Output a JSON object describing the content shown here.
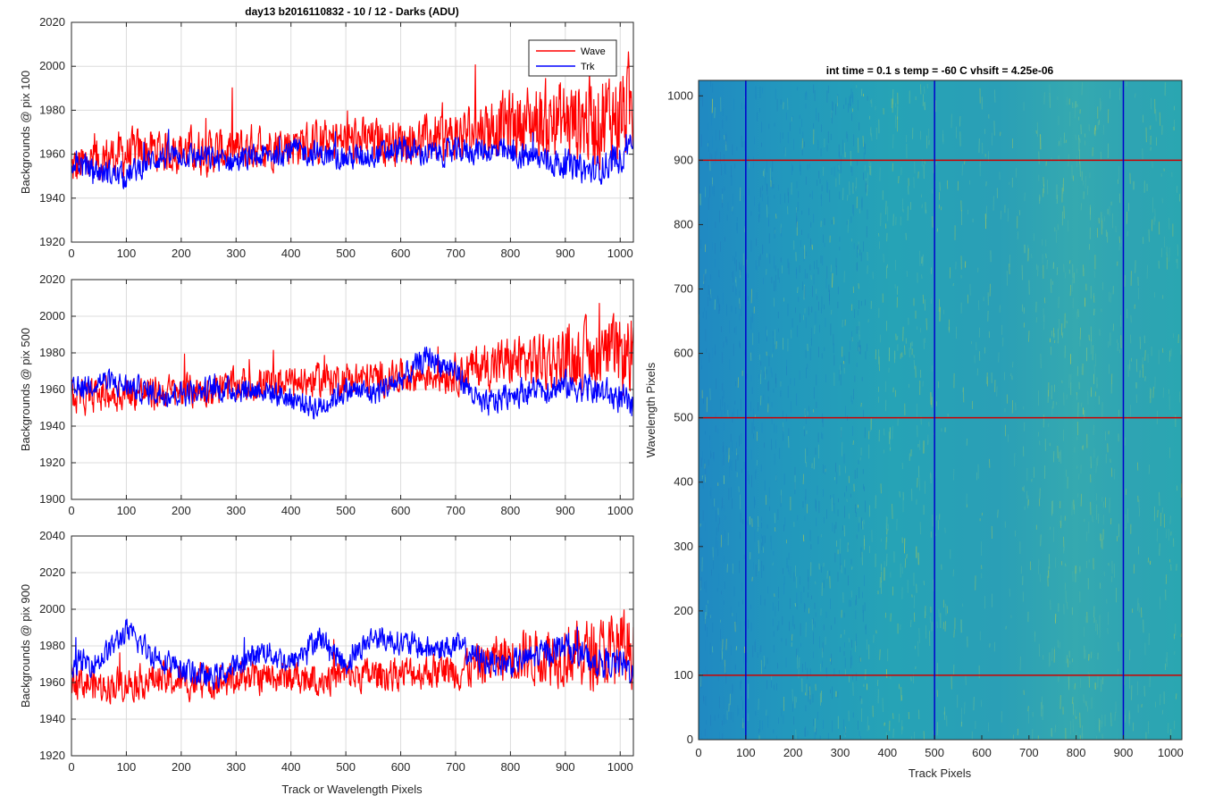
{
  "figure": {
    "main_title": "day13 b2016110832 - 10 / 12 - Darks (ADU)",
    "xlabel_left": "Track or Wavelength Pixels"
  },
  "chart_data": [
    {
      "type": "line",
      "ylabel": "Backgrounds @ pix 100",
      "xlim": [
        0,
        1024
      ],
      "ylim": [
        1920,
        2020
      ],
      "xticks": [
        0,
        100,
        200,
        300,
        400,
        500,
        600,
        700,
        800,
        900,
        1000
      ],
      "yticks": [
        1920,
        1940,
        1960,
        1980,
        2000,
        2020
      ],
      "grid": true,
      "legend": {
        "placement": "top-right",
        "entries": [
          "Wave",
          "Trk"
        ]
      },
      "series": [
        {
          "name": "Wave",
          "color": "#ff0000",
          "x": [
            0,
            50,
            100,
            150,
            200,
            250,
            300,
            350,
            400,
            450,
            500,
            550,
            600,
            650,
            700,
            750,
            800,
            850,
            900,
            950,
            1000,
            1024
          ],
          "y": [
            1953,
            1958,
            1960,
            1962,
            1962,
            1961,
            1962,
            1964,
            1965,
            1965,
            1966,
            1966,
            1966,
            1967,
            1968,
            1972,
            1974,
            1975,
            1975,
            1976,
            1978,
            1982
          ]
        },
        {
          "name": "Trk",
          "color": "#0000ff",
          "x": [
            0,
            50,
            100,
            150,
            200,
            250,
            300,
            350,
            400,
            450,
            500,
            550,
            600,
            650,
            700,
            750,
            800,
            850,
            900,
            950,
            1000,
            1024
          ],
          "y": [
            1957,
            1952,
            1950,
            1958,
            1960,
            1958,
            1957,
            1959,
            1962,
            1960,
            1958,
            1960,
            1962,
            1960,
            1961,
            1962,
            1960,
            1958,
            1955,
            1952,
            1958,
            1970
          ]
        }
      ]
    },
    {
      "type": "line",
      "ylabel": "Backgrounds @ pix 500",
      "xlim": [
        0,
        1024
      ],
      "ylim": [
        1900,
        2020
      ],
      "xticks": [
        0,
        100,
        200,
        300,
        400,
        500,
        600,
        700,
        800,
        900,
        1000
      ],
      "yticks": [
        1900,
        1920,
        1940,
        1960,
        1980,
        2000,
        2020
      ],
      "grid": true,
      "series": [
        {
          "name": "Wave",
          "color": "#ff0000",
          "x": [
            0,
            50,
            100,
            150,
            200,
            250,
            300,
            350,
            400,
            450,
            500,
            550,
            600,
            650,
            700,
            750,
            800,
            850,
            900,
            950,
            1000,
            1024
          ],
          "y": [
            1955,
            1957,
            1958,
            1958,
            1959,
            1960,
            1962,
            1963,
            1964,
            1965,
            1966,
            1966,
            1967,
            1968,
            1969,
            1973,
            1975,
            1976,
            1977,
            1978,
            1978,
            1980
          ]
        },
        {
          "name": "Trk",
          "color": "#0000ff",
          "x": [
            0,
            50,
            100,
            150,
            200,
            250,
            300,
            350,
            400,
            450,
            500,
            550,
            600,
            650,
            700,
            750,
            800,
            850,
            900,
            950,
            1000,
            1024
          ],
          "y": [
            1958,
            1965,
            1962,
            1958,
            1958,
            1960,
            1960,
            1960,
            1955,
            1950,
            1960,
            1958,
            1965,
            1978,
            1970,
            1950,
            1958,
            1960,
            1962,
            1960,
            1955,
            1950
          ]
        }
      ]
    },
    {
      "type": "line",
      "ylabel": "Backgrounds @ pix 900",
      "xlim": [
        0,
        1024
      ],
      "ylim": [
        1920,
        2040
      ],
      "xticks": [
        0,
        100,
        200,
        300,
        400,
        500,
        600,
        700,
        800,
        900,
        1000
      ],
      "yticks": [
        1920,
        1940,
        1960,
        1980,
        2000,
        2020,
        2040
      ],
      "grid": true,
      "series": [
        {
          "name": "Wave",
          "color": "#ff0000",
          "x": [
            0,
            50,
            100,
            150,
            200,
            250,
            300,
            350,
            400,
            450,
            500,
            550,
            600,
            650,
            700,
            750,
            800,
            850,
            900,
            950,
            1000,
            1024
          ],
          "y": [
            1962,
            1958,
            1960,
            1962,
            1960,
            1960,
            1962,
            1963,
            1963,
            1962,
            1964,
            1964,
            1965,
            1966,
            1967,
            1970,
            1975,
            1975,
            1976,
            1975,
            1978,
            1978
          ]
        },
        {
          "name": "Trk",
          "color": "#0000ff",
          "x": [
            0,
            50,
            100,
            150,
            200,
            250,
            300,
            350,
            400,
            450,
            500,
            550,
            600,
            650,
            700,
            750,
            800,
            850,
            900,
            950,
            1000,
            1024
          ],
          "y": [
            1970,
            1972,
            1988,
            1975,
            1968,
            1962,
            1968,
            1978,
            1970,
            1985,
            1970,
            1985,
            1982,
            1978,
            1980,
            1972,
            1970,
            1975,
            1980,
            1972,
            1970,
            1966
          ]
        }
      ]
    },
    {
      "type": "heatmap",
      "title": "int time = 0.1 s   temp = -60 C   vhsift = 4.25e-06",
      "xlabel": "Track Pixels",
      "ylabel": "Wavelength Pixels",
      "xlim": [
        0,
        1024
      ],
      "ylim": [
        0,
        1024
      ],
      "xticks": [
        0,
        100,
        200,
        300,
        400,
        500,
        600,
        700,
        800,
        900,
        1000
      ],
      "yticks": [
        0,
        100,
        200,
        300,
        400,
        500,
        600,
        700,
        800,
        900,
        1000
      ],
      "colors": {
        "low": "#1f8fc4",
        "mid": "#23a4b8",
        "high": "#a8c85a"
      },
      "vertical_markers": {
        "color": "#0000cc",
        "x": [
          100,
          500,
          900
        ]
      },
      "horizontal_markers": {
        "color": "#cc0000",
        "y": [
          100,
          500,
          900
        ]
      }
    }
  ]
}
